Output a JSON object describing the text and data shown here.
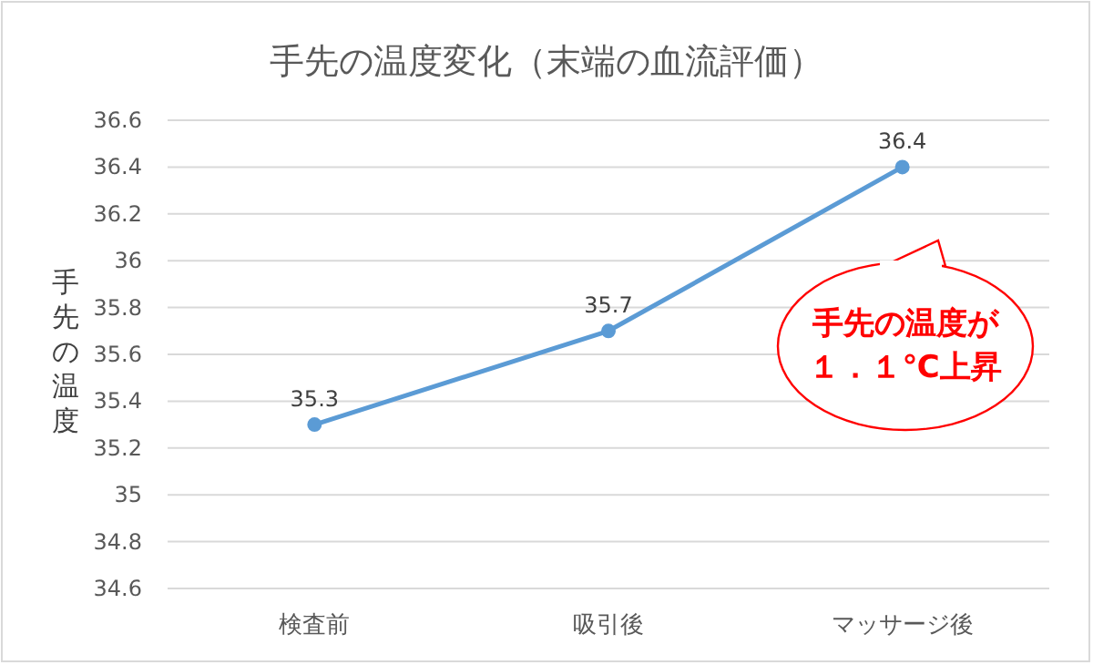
{
  "chart_data": {
    "type": "line",
    "title": "手先の温度変化（末端の血流評価）",
    "ylabel": "手先の温度",
    "categories": [
      "検査前",
      "吸引後",
      "マッサージ後"
    ],
    "series": [
      {
        "color": "#5b9bd5",
        "values": [
          35.3,
          35.7,
          36.4
        ]
      }
    ],
    "ylim": [
      34.6,
      36.6
    ],
    "yticks": [
      34.6,
      34.8,
      35,
      35.2,
      35.4,
      35.6,
      35.8,
      36,
      36.2,
      36.4,
      36.6
    ],
    "grid": "y",
    "marker": "circle",
    "line_style": "solid",
    "data_labels": true,
    "annotations": [
      "手先の温度が１．１℃上昇"
    ]
  }
}
